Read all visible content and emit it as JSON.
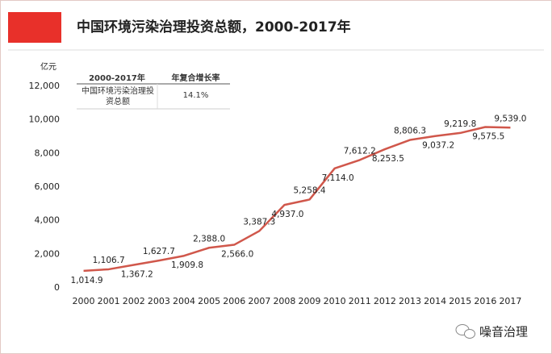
{
  "chart_data": {
    "type": "line",
    "title": "中国环境污染治理投资总额，2000-2017年",
    "y_unit": "亿元",
    "categories": [
      "2000",
      "2001",
      "2002",
      "2003",
      "2004",
      "2005",
      "2006",
      "2007",
      "2008",
      "2009",
      "2010",
      "2011",
      "2012",
      "2013",
      "2014",
      "2015",
      "2016",
      "2017"
    ],
    "values": [
      1014.9,
      1106.7,
      1367.2,
      1627.7,
      1909.8,
      2388.0,
      2566.0,
      3387.3,
      4937.0,
      5258.4,
      7114.0,
      7612.2,
      8253.5,
      8806.3,
      9037.2,
      9219.8,
      9575.5,
      9539.0
    ],
    "value_labels": [
      "1,014.9",
      "1,106.7",
      "1,367.2",
      "1,627.7",
      "1,909.8",
      "2,388.0",
      "2,566.0",
      "3,387.3",
      "4,937.0",
      "5,258.4",
      "7,114.0",
      "7,612.2",
      "8,253.5",
      "8,806.3",
      "9,037.2",
      "9,219.8",
      "9,575.5",
      "9,539.0"
    ],
    "color": "#d0574b",
    "ylim": [
      0,
      12000
    ],
    "yticks": [
      0,
      {
        "value": 2000,
        "label": "2,000"
      },
      {
        "value": 4000,
        "label": "4,000"
      },
      {
        "value": 6000,
        "label": "6,000"
      },
      {
        "value": 8000,
        "label": "8,000"
      },
      {
        "value": 10000,
        "label": "10,000"
      },
      {
        "value": 12000,
        "label": "12,000"
      }
    ],
    "grid": false,
    "table": {
      "header": [
        "2000-2017年",
        "年复合增长率"
      ],
      "rows": [
        [
          "中国环境污染治理投资总额",
          "14.1%"
        ]
      ]
    },
    "footer": "噪音治理"
  }
}
